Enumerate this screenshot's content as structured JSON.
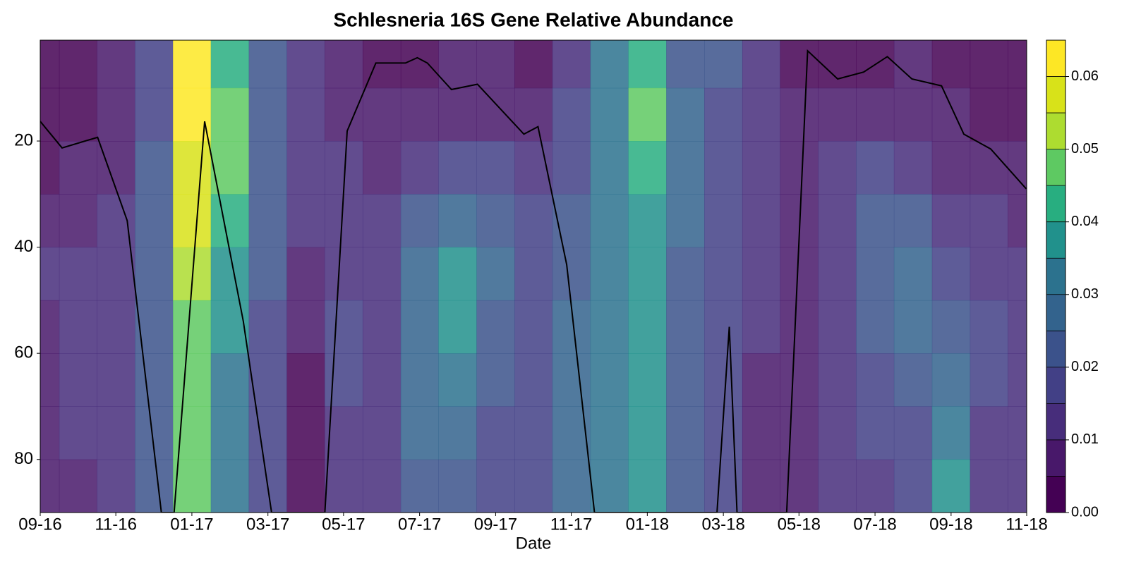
{
  "chart_data": {
    "type": "contour",
    "title": "Schlesneria 16S Gene Relative Abundance",
    "x_label": "Date",
    "xlim": [
      2016.667,
      2018.833
    ],
    "xticks": [
      {
        "value": 2016.667,
        "label": "09-16"
      },
      {
        "value": 2016.833,
        "label": "11-16"
      },
      {
        "value": 2017.0,
        "label": "01-17"
      },
      {
        "value": 2017.167,
        "label": "03-17"
      },
      {
        "value": 2017.333,
        "label": "05-17"
      },
      {
        "value": 2017.5,
        "label": "07-17"
      },
      {
        "value": 2017.667,
        "label": "09-17"
      },
      {
        "value": 2017.833,
        "label": "11-17"
      },
      {
        "value": 2018.0,
        "label": "01-18"
      },
      {
        "value": 2018.167,
        "label": "03-18"
      },
      {
        "value": 2018.333,
        "label": "05-18"
      },
      {
        "value": 2018.5,
        "label": "07-18"
      },
      {
        "value": 2018.667,
        "label": "09-18"
      },
      {
        "value": 2018.833,
        "label": "11-18"
      }
    ],
    "ylim": [
      1,
      90
    ],
    "yticks": [
      20,
      40,
      60,
      80
    ],
    "x": [
      2016.667,
      2016.75,
      2016.833,
      2016.917,
      2017.0,
      2017.083,
      2017.167,
      2017.25,
      2017.333,
      2017.417,
      2017.5,
      2017.583,
      2017.667,
      2017.75,
      2017.833,
      2017.917,
      2018.0,
      2018.083,
      2018.167,
      2018.25,
      2018.333,
      2018.417,
      2018.5,
      2018.583,
      2018.667,
      2018.75,
      2018.833
    ],
    "y": [
      5,
      15,
      25,
      35,
      45,
      55,
      65,
      75,
      85
    ],
    "z": [
      [
        0.003,
        0.003,
        0.004,
        0.007,
        0.01,
        0.008,
        0.007,
        0.007,
        0.007
      ],
      [
        0.004,
        0.004,
        0.005,
        0.007,
        0.01,
        0.01,
        0.01,
        0.01,
        0.008
      ],
      [
        0.006,
        0.008,
        0.009,
        0.01,
        0.012,
        0.012,
        0.012,
        0.012,
        0.012
      ],
      [
        0.015,
        0.017,
        0.02,
        0.02,
        0.02,
        0.02,
        0.02,
        0.02,
        0.02
      ],
      [
        0.06,
        0.062,
        0.058,
        0.055,
        0.05,
        0.048,
        0.048,
        0.048,
        0.048
      ],
      [
        0.04,
        0.045,
        0.045,
        0.04,
        0.038,
        0.035,
        0.03,
        0.03,
        0.03
      ],
      [
        0.02,
        0.02,
        0.022,
        0.022,
        0.02,
        0.018,
        0.015,
        0.015,
        0.015
      ],
      [
        0.01,
        0.01,
        0.01,
        0.012,
        0.008,
        0.006,
        0.004,
        0.004,
        0.004
      ],
      [
        0.008,
        0.009,
        0.01,
        0.01,
        0.012,
        0.015,
        0.017,
        0.012,
        0.01
      ],
      [
        0.004,
        0.005,
        0.008,
        0.01,
        0.01,
        0.01,
        0.012,
        0.012,
        0.012
      ],
      [
        0.004,
        0.006,
        0.014,
        0.022,
        0.026,
        0.028,
        0.028,
        0.025,
        0.022
      ],
      [
        0.005,
        0.008,
        0.018,
        0.025,
        0.035,
        0.035,
        0.03,
        0.025,
        0.022
      ],
      [
        0.005,
        0.007,
        0.015,
        0.02,
        0.025,
        0.022,
        0.02,
        0.018,
        0.018
      ],
      [
        0.004,
        0.006,
        0.012,
        0.015,
        0.018,
        0.018,
        0.016,
        0.015,
        0.015
      ],
      [
        0.012,
        0.015,
        0.018,
        0.02,
        0.022,
        0.025,
        0.025,
        0.025,
        0.025
      ],
      [
        0.03,
        0.03,
        0.03,
        0.03,
        0.03,
        0.03,
        0.03,
        0.03,
        0.03
      ],
      [
        0.04,
        0.045,
        0.04,
        0.035,
        0.035,
        0.035,
        0.035,
        0.035,
        0.035
      ],
      [
        0.022,
        0.025,
        0.025,
        0.025,
        0.022,
        0.022,
        0.022,
        0.022,
        0.022
      ],
      [
        0.02,
        0.018,
        0.018,
        0.016,
        0.015,
        0.015,
        0.015,
        0.015,
        0.015
      ],
      [
        0.012,
        0.012,
        0.01,
        0.01,
        0.01,
        0.01,
        0.008,
        0.008,
        0.008
      ],
      [
        0.004,
        0.005,
        0.006,
        0.006,
        0.006,
        0.006,
        0.006,
        0.006,
        0.006
      ],
      [
        0.004,
        0.006,
        0.01,
        0.012,
        0.012,
        0.012,
        0.012,
        0.012,
        0.012
      ],
      [
        0.004,
        0.008,
        0.015,
        0.02,
        0.022,
        0.02,
        0.018,
        0.015,
        0.014
      ],
      [
        0.005,
        0.008,
        0.012,
        0.02,
        0.025,
        0.025,
        0.022,
        0.018,
        0.016
      ],
      [
        0.004,
        0.005,
        0.008,
        0.012,
        0.015,
        0.02,
        0.025,
        0.03,
        0.035
      ],
      [
        0.004,
        0.004,
        0.006,
        0.01,
        0.014,
        0.016,
        0.016,
        0.014,
        0.012
      ],
      [
        0.004,
        0.004,
        0.005,
        0.008,
        0.01,
        0.01,
        0.01,
        0.01,
        0.01
      ]
    ],
    "levels": [
      0,
      0.005,
      0.01,
      0.015,
      0.02,
      0.025,
      0.03,
      0.035,
      0.04,
      0.045,
      0.05,
      0.055,
      0.06,
      0.065
    ],
    "colors": [
      "#440154",
      "#48186a",
      "#472d7b",
      "#424086",
      "#3b528b",
      "#33638d",
      "#2c728e",
      "#21918c",
      "#28ae80",
      "#5ec962",
      "#addc30",
      "#d8e219",
      "#fde725"
    ],
    "clim": [
      0,
      0.065
    ],
    "colorbar_ticks": [
      {
        "value": 0,
        "label": "0.00"
      },
      0.01,
      0.02,
      0.03,
      0.04,
      0.05,
      0.06
    ],
    "line": {
      "color": "#000000",
      "x": [
        2016.667,
        2016.715,
        2016.793,
        2016.858,
        2016.933,
        2016.961,
        2017.028,
        2017.113,
        2017.175,
        2017.292,
        2017.341,
        2017.404,
        2017.469,
        2017.495,
        2017.517,
        2017.57,
        2017.627,
        2017.729,
        2017.76,
        2017.823,
        2017.884,
        2018.153,
        2018.18,
        2018.197,
        2018.306,
        2018.352,
        2018.418,
        2018.475,
        2018.527,
        2018.581,
        2018.646,
        2018.695,
        2018.754,
        2018.832
      ],
      "y": [
        16.3,
        21.3,
        19.3,
        35,
        90,
        90,
        16.3,
        54,
        90,
        90,
        18.1,
        5.3,
        5.3,
        4.3,
        5.3,
        10.3,
        9.3,
        18.7,
        17.3,
        43.3,
        90,
        90,
        55,
        90,
        90,
        3,
        8.3,
        7,
        4.1,
        8.3,
        9.6,
        18.7,
        21.5,
        29
      ]
    }
  }
}
